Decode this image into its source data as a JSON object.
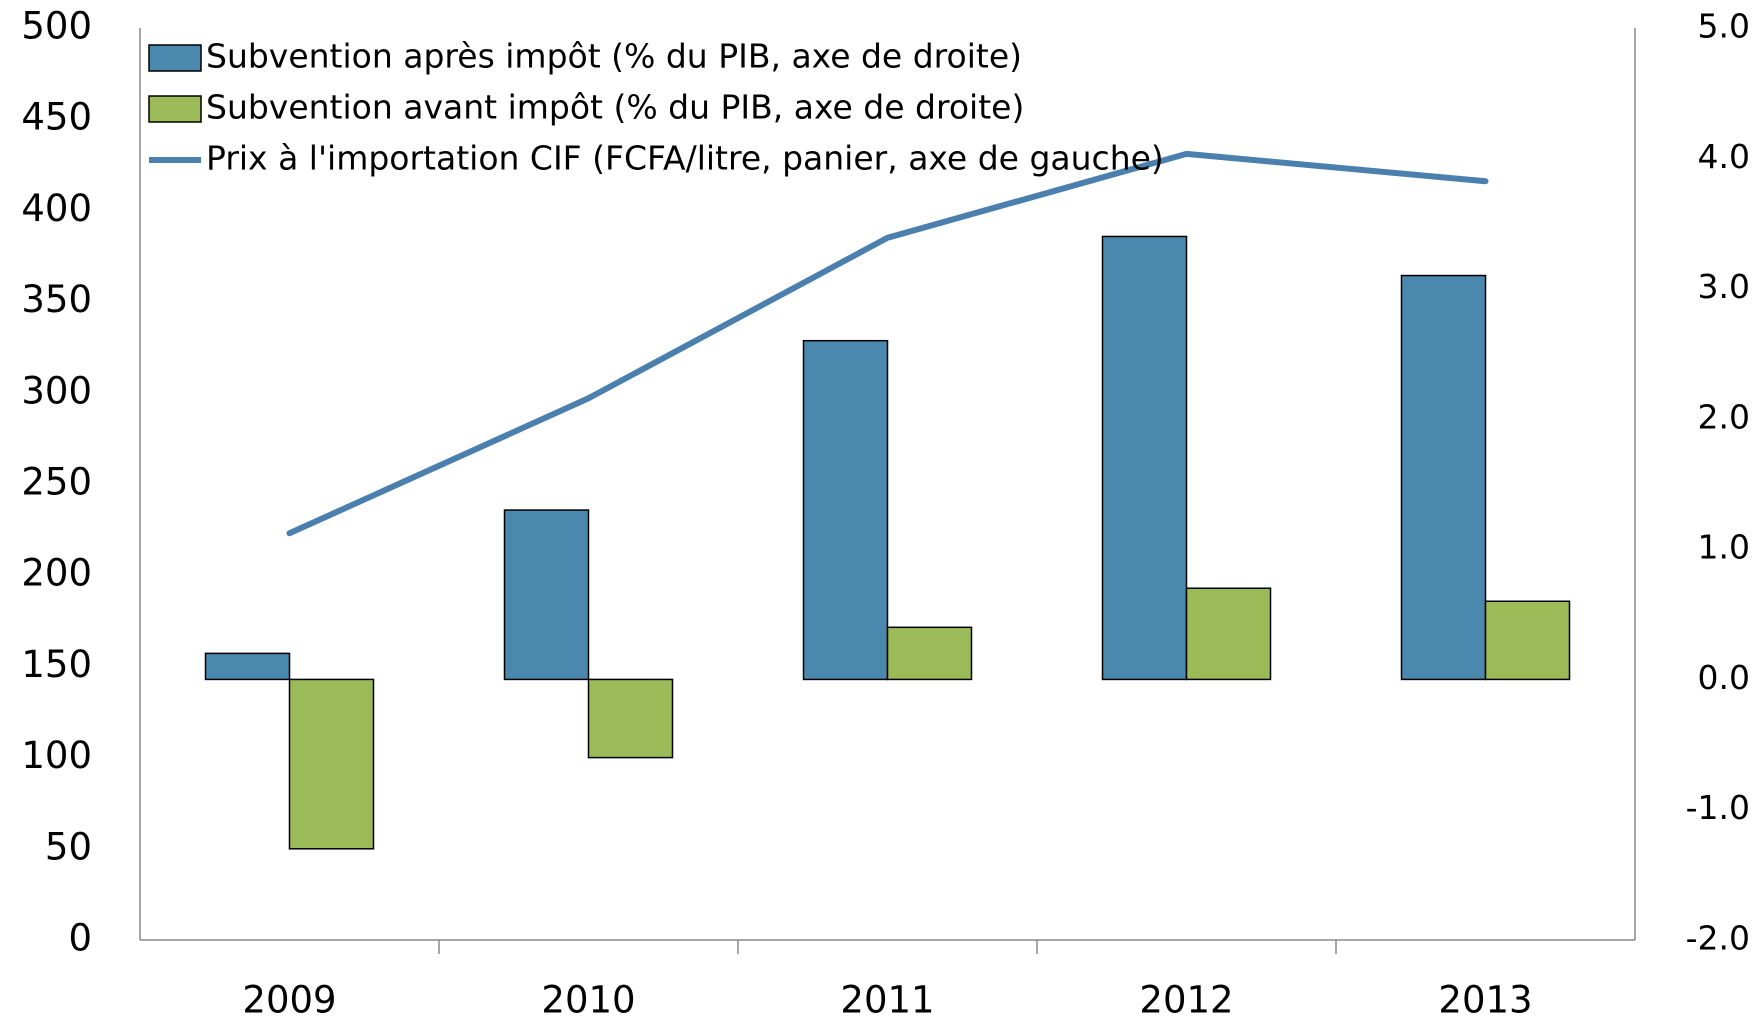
{
  "chart_data": {
    "type": "bar",
    "categories": [
      "2009",
      "2010",
      "2011",
      "2012",
      "2013"
    ],
    "series": [
      {
        "name": "Subvention après impôt (% du PIB, axe de droite)",
        "color": "#4a89ad",
        "axis": "y2",
        "type": "bar",
        "values": [
          0.2,
          1.3,
          2.6,
          3.4,
          3.1
        ]
      },
      {
        "name": "Subvention avant impôt (% du PIB, axe de droite)",
        "color": "#9bbb59",
        "axis": "y2",
        "type": "bar",
        "values": [
          -1.3,
          -0.6,
          0.4,
          0.7,
          0.6
        ]
      },
      {
        "name": "Prix à l'importation CIF (FCFA/litre, panier, axe de gauche)",
        "color": "#4a7fae",
        "axis": "y",
        "type": "line",
        "values": [
          223,
          297,
          385,
          431,
          416
        ]
      }
    ],
    "ylim": [
      0,
      500
    ],
    "yticks": [
      0,
      50,
      100,
      150,
      200,
      250,
      300,
      350,
      400,
      450,
      500
    ],
    "y2lim": [
      -2,
      5
    ],
    "y2ticks": [
      {
        "value": -2,
        "label": "-2.0"
      },
      {
        "value": -1,
        "label": "-1.0"
      },
      {
        "value": 0,
        "label": "0.0"
      },
      {
        "value": 1,
        "label": "1.0"
      },
      {
        "value": 2,
        "label": "2.0"
      },
      {
        "value": 3,
        "label": "3.0"
      },
      {
        "value": 4,
        "label": "4.0"
      },
      {
        "value": 5,
        "label": "5.0"
      }
    ],
    "legend": "top-left"
  }
}
